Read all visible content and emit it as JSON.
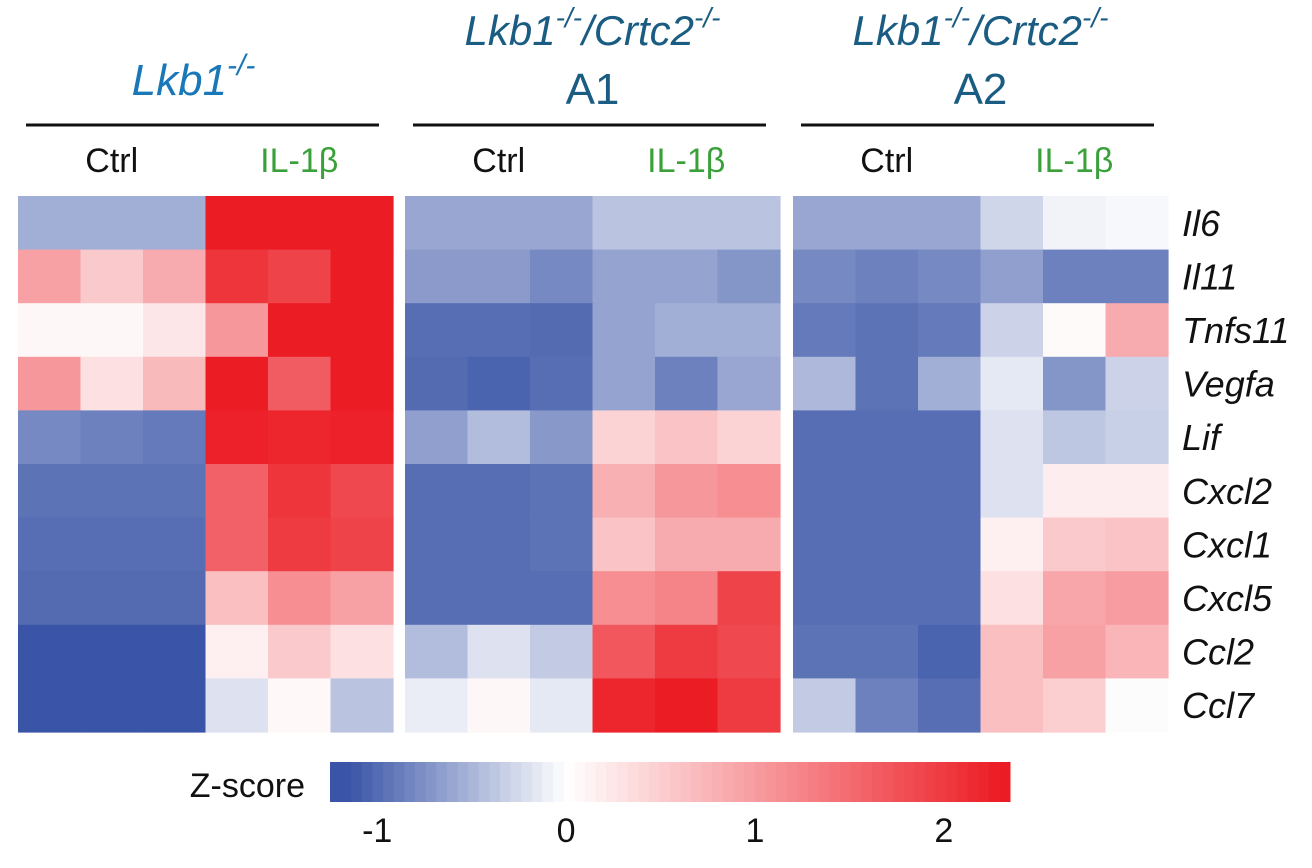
{
  "chart_data": {
    "type": "heatmap",
    "colorbar": {
      "label": "Z-score",
      "ticks": [
        "-1",
        "0",
        "1",
        "2"
      ],
      "tick_values": [
        -1,
        0,
        1,
        2
      ],
      "range": [
        -1.25,
        2.35
      ],
      "low_color": "#3a55a7",
      "mid_color": "#ffffff",
      "high_color": "#ec1c24"
    },
    "genes": [
      "Il6",
      "Il11",
      "Tnfs11",
      "Vegfa",
      "Lif",
      "Cxcl2",
      "Cxcl1",
      "Cxcl5",
      "Ccl2",
      "Ccl7"
    ],
    "groups": [
      {
        "title_lines": [
          "Lkb1",
          "-/-"
        ],
        "title_color": "#1a78b8",
        "ctrl_label": "Ctrl",
        "trt_label": "IL-1β",
        "values": [
          [
            -0.55,
            -0.55,
            -0.55,
            2.3,
            2.3,
            2.3
          ],
          [
            0.95,
            0.55,
            0.85,
            2.05,
            1.9,
            2.3
          ],
          [
            0.08,
            0.08,
            0.25,
            1.05,
            2.3,
            2.3
          ],
          [
            1.05,
            0.3,
            0.7,
            2.3,
            1.65,
            2.3
          ],
          [
            -0.8,
            -0.85,
            -0.9,
            2.25,
            2.2,
            2.25
          ],
          [
            -0.95,
            -0.95,
            -0.95,
            1.6,
            2.05,
            1.85
          ],
          [
            -0.98,
            -0.98,
            -0.98,
            1.6,
            2.0,
            1.9
          ],
          [
            -1.0,
            -1.0,
            -1.0,
            0.65,
            1.15,
            0.95
          ],
          [
            -1.2,
            -1.2,
            -1.2,
            0.15,
            0.55,
            0.3
          ],
          [
            -1.15,
            -1.15,
            -1.15,
            -0.2,
            0.07,
            -0.4
          ]
        ]
      },
      {
        "title_lines": [
          "Lkb1",
          "-/-",
          "/Crtc2",
          "-/-",
          "A1"
        ],
        "title_color": "#1a5c82",
        "ctrl_label": "Ctrl",
        "trt_label": "IL-1β",
        "values": [
          [
            -0.6,
            -0.6,
            -0.6,
            -0.4,
            -0.4,
            -0.4
          ],
          [
            -0.68,
            -0.68,
            -0.8,
            -0.62,
            -0.62,
            -0.72
          ],
          [
            -0.98,
            -0.98,
            -1.0,
            -0.62,
            -0.55,
            -0.55
          ],
          [
            -1.0,
            -1.05,
            -0.98,
            -0.62,
            -0.85,
            -0.6
          ],
          [
            -0.65,
            -0.45,
            -0.7,
            0.45,
            0.6,
            0.45
          ],
          [
            -0.98,
            -0.98,
            -0.95,
            0.8,
            1.05,
            1.15
          ],
          [
            -0.98,
            -0.98,
            -0.95,
            0.6,
            0.85,
            0.85
          ],
          [
            -0.98,
            -0.98,
            -0.98,
            1.15,
            1.25,
            1.9
          ],
          [
            -0.45,
            -0.2,
            -0.35,
            1.7,
            2.0,
            1.85
          ],
          [
            -0.12,
            0.08,
            -0.15,
            2.2,
            2.35,
            2.0
          ]
        ]
      },
      {
        "title_lines": [
          "Lkb1",
          "-/-",
          "/Crtc2",
          "-/-",
          "A2"
        ],
        "title_color": "#1a5c82",
        "ctrl_label": "Ctrl",
        "trt_label": "IL-1β",
        "values": [
          [
            -0.6,
            -0.6,
            -0.6,
            -0.28,
            -0.08,
            -0.05
          ],
          [
            -0.8,
            -0.85,
            -0.8,
            -0.65,
            -0.85,
            -0.85
          ],
          [
            -0.9,
            -0.95,
            -0.9,
            -0.3,
            0.05,
            0.85
          ],
          [
            -0.48,
            -0.95,
            -0.55,
            -0.15,
            -0.72,
            -0.3
          ],
          [
            -0.98,
            -0.98,
            -0.98,
            -0.2,
            -0.38,
            -0.32
          ],
          [
            -0.98,
            -0.98,
            -0.98,
            -0.2,
            0.18,
            0.18
          ],
          [
            -0.98,
            -0.98,
            -0.98,
            0.15,
            0.55,
            0.6
          ],
          [
            -0.98,
            -0.98,
            -0.98,
            0.3,
            0.9,
            1.0
          ],
          [
            -0.95,
            -0.95,
            -1.05,
            0.65,
            0.95,
            0.75
          ],
          [
            -0.35,
            -0.85,
            -0.98,
            0.65,
            0.5,
            -0.02
          ]
        ]
      }
    ]
  }
}
